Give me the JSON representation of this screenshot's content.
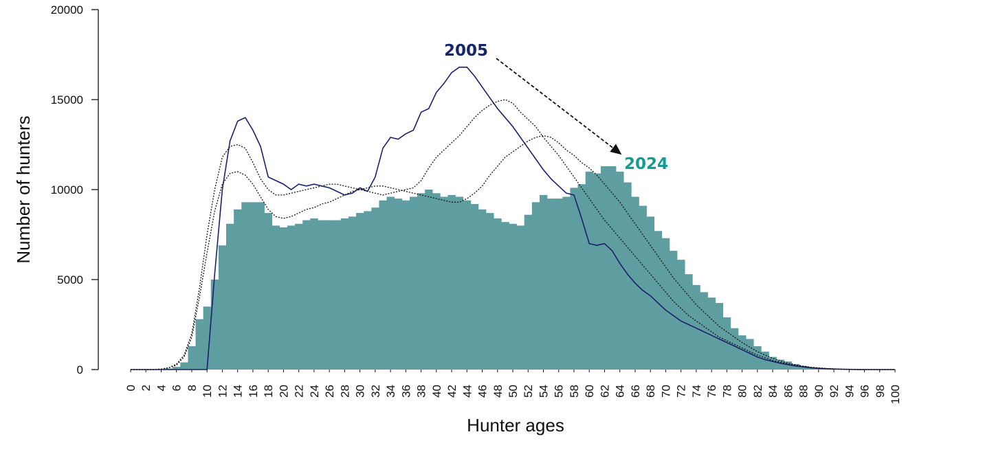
{
  "chart_data": {
    "type": "bar",
    "x_label": "Hunter ages",
    "y_label": "Number of hunters",
    "x": [
      0,
      1,
      2,
      3,
      4,
      5,
      6,
      7,
      8,
      9,
      10,
      11,
      12,
      13,
      14,
      15,
      16,
      17,
      18,
      19,
      20,
      21,
      22,
      23,
      24,
      25,
      26,
      27,
      28,
      29,
      30,
      31,
      32,
      33,
      34,
      35,
      36,
      37,
      38,
      39,
      40,
      41,
      42,
      43,
      44,
      45,
      46,
      47,
      48,
      49,
      50,
      51,
      52,
      53,
      54,
      55,
      56,
      57,
      58,
      59,
      60,
      61,
      62,
      63,
      64,
      65,
      66,
      67,
      68,
      69,
      70,
      71,
      72,
      73,
      74,
      75,
      76,
      77,
      78,
      79,
      80,
      81,
      82,
      83,
      84,
      85,
      86,
      87,
      88,
      89,
      90,
      91,
      92,
      93,
      94,
      95,
      96,
      97,
      98,
      99,
      100
    ],
    "xlim": [
      0,
      100
    ],
    "xticks": [
      0,
      2,
      4,
      6,
      8,
      10,
      12,
      14,
      16,
      18,
      20,
      22,
      24,
      26,
      28,
      30,
      32,
      34,
      36,
      38,
      40,
      42,
      44,
      46,
      48,
      50,
      52,
      54,
      56,
      58,
      60,
      62,
      64,
      66,
      68,
      70,
      72,
      74,
      76,
      78,
      80,
      82,
      84,
      86,
      88,
      90,
      92,
      94,
      96,
      98,
      100
    ],
    "ylim": [
      0,
      20000
    ],
    "yticks": [
      0,
      5000,
      10000,
      15000,
      20000
    ],
    "series": [
      {
        "name": "2024",
        "type": "bar",
        "color": "#5f9ea0",
        "label_color": "#149b94",
        "values": [
          0,
          0,
          0,
          0,
          20,
          60,
          150,
          400,
          1300,
          2800,
          3500,
          5000,
          6900,
          8100,
          8900,
          9300,
          9300,
          9300,
          8700,
          8000,
          7900,
          8000,
          8100,
          8300,
          8400,
          8300,
          8300,
          8300,
          8400,
          8500,
          8700,
          8800,
          9000,
          9400,
          9600,
          9500,
          9400,
          9600,
          9800,
          10000,
          9800,
          9600,
          9700,
          9600,
          9400,
          9200,
          8900,
          8700,
          8400,
          8200,
          8100,
          8000,
          8600,
          9300,
          9700,
          9500,
          9500,
          9600,
          10100,
          10300,
          11000,
          10900,
          11300,
          11300,
          11000,
          10400,
          9600,
          9100,
          8500,
          7700,
          7300,
          6600,
          6100,
          5300,
          4700,
          4300,
          4000,
          3700,
          2900,
          2300,
          1900,
          1700,
          1300,
          1000,
          700,
          550,
          450,
          300,
          200,
          130,
          80,
          50,
          30,
          20,
          10,
          5,
          0,
          0,
          0,
          0,
          0
        ]
      },
      {
        "name": "2005",
        "type": "line",
        "style": "solid",
        "color": "#1a1f6e",
        "label_color": "#15266b",
        "values": [
          0,
          0,
          0,
          0,
          0,
          0,
          0,
          0,
          0,
          0,
          0,
          5300,
          10000,
          12700,
          13800,
          14000,
          13300,
          12400,
          10700,
          10500,
          10300,
          10000,
          10300,
          10200,
          10300,
          10200,
          10100,
          9900,
          9700,
          9800,
          10100,
          9900,
          10700,
          12300,
          12900,
          12800,
          13100,
          13300,
          14300,
          14500,
          15400,
          15900,
          16500,
          16800,
          16800,
          16300,
          15700,
          15100,
          14500,
          14000,
          13500,
          12900,
          12300,
          11700,
          11100,
          10600,
          10200,
          9800,
          9700,
          8400,
          7000,
          6900,
          7000,
          6600,
          5900,
          5300,
          4800,
          4400,
          4100,
          3700,
          3300,
          3000,
          2700,
          2500,
          2300,
          2100,
          1900,
          1700,
          1500,
          1300,
          1100,
          900,
          700,
          550,
          450,
          350,
          270,
          200,
          150,
          100,
          70,
          50,
          30,
          20,
          10,
          0,
          0,
          0,
          0,
          0,
          0
        ]
      },
      {
        "type": "line",
        "style": "dotted",
        "color": "#111111",
        "values": [
          0,
          0,
          0,
          0,
          30,
          100,
          300,
          800,
          2000,
          4500,
          7500,
          10000,
          11800,
          12400,
          12500,
          12300,
          11500,
          10600,
          10000,
          9700,
          9700,
          9800,
          9900,
          10000,
          10100,
          10200,
          10300,
          10300,
          10200,
          10100,
          10000,
          9900,
          9800,
          9700,
          9800,
          9900,
          10000,
          10100,
          10500,
          11200,
          11800,
          12200,
          12600,
          13000,
          13500,
          14000,
          14400,
          14700,
          14900,
          15000,
          14800,
          14300,
          13900,
          13500,
          12900,
          12400,
          11900,
          11300,
          10700,
          10100,
          9500,
          8900,
          8300,
          7800,
          7300,
          6800,
          6300,
          5800,
          5300,
          4800,
          4300,
          3800,
          3400,
          3000,
          2700,
          2400,
          2100,
          1800,
          1600,
          1400,
          1200,
          1000,
          800,
          650,
          500,
          400,
          300,
          230,
          170,
          120,
          80,
          50,
          30,
          20,
          10,
          5,
          0,
          0,
          0,
          0,
          0
        ]
      },
      {
        "type": "line",
        "style": "dotted",
        "color": "#111111",
        "values": [
          0,
          0,
          0,
          0,
          30,
          90,
          250,
          700,
          1800,
          4000,
          6500,
          8800,
          10300,
          10900,
          11000,
          10800,
          10300,
          9600,
          8900,
          8500,
          8400,
          8500,
          8700,
          8900,
          9000,
          9200,
          9300,
          9500,
          9700,
          9900,
          10000,
          10100,
          10200,
          10200,
          10100,
          10000,
          9900,
          9800,
          9700,
          9600,
          9500,
          9400,
          9300,
          9300,
          9500,
          9800,
          10200,
          10800,
          11300,
          11800,
          12100,
          12400,
          12700,
          12900,
          13000,
          12900,
          12600,
          12200,
          11900,
          11500,
          11200,
          10800,
          10300,
          9800,
          9300,
          8700,
          8100,
          7500,
          6900,
          6300,
          5700,
          5100,
          4600,
          4100,
          3600,
          3200,
          2800,
          2400,
          2100,
          1800,
          1500,
          1250,
          1000,
          800,
          630,
          480,
          360,
          270,
          190,
          130,
          90,
          60,
          35,
          20,
          10,
          5,
          0,
          0,
          0,
          0,
          0
        ]
      }
    ]
  }
}
